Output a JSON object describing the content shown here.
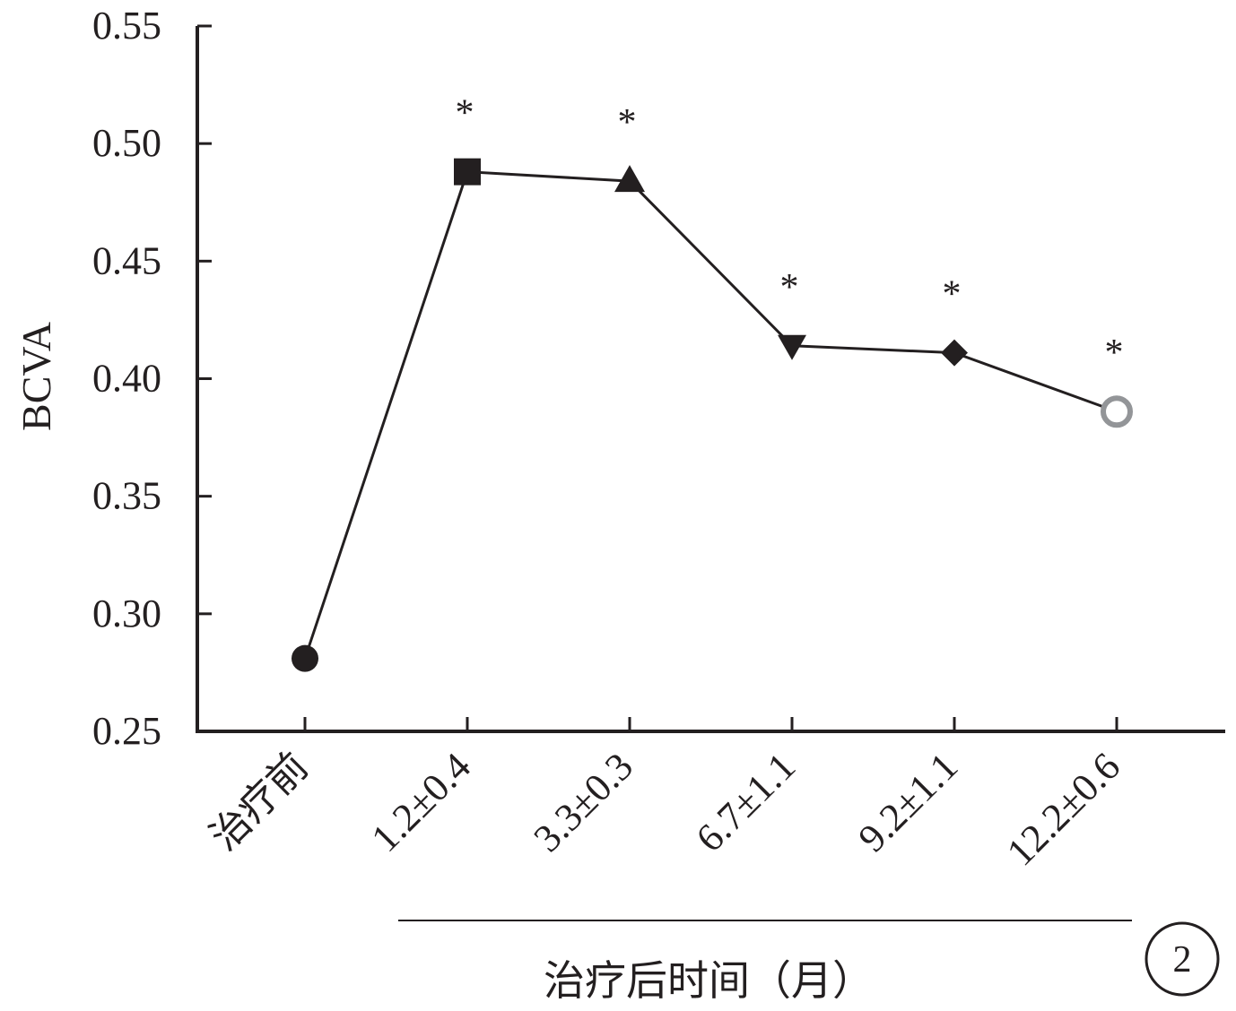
{
  "chart_data": {
    "type": "line",
    "title": "",
    "ylabel": "BCVA",
    "xlabel": "治疗后时间（月）",
    "ylim": [
      0.25,
      0.55
    ],
    "yticks": [
      "0.25",
      "0.30",
      "0.35",
      "0.40",
      "0.45",
      "0.50",
      "0.55"
    ],
    "categories": [
      "治疗前",
      "1.2±0.4",
      "3.3±0.3",
      "6.7±1.1",
      "9.2±1.1",
      "12.2±0.6"
    ],
    "values": [
      0.281,
      0.488,
      0.484,
      0.414,
      0.411,
      0.386
    ],
    "markers": [
      "circle",
      "square",
      "triangle-up",
      "triangle-down",
      "diamond",
      "ring"
    ],
    "marker_colors": [
      "#231f20",
      "#231f20",
      "#231f20",
      "#231f20",
      "#231f20",
      "#939598"
    ],
    "significance": [
      "",
      "*",
      "*",
      "*",
      "*",
      "*"
    ],
    "line_color": "#231f20",
    "grid": false,
    "legend": "none",
    "panel_label": "2"
  }
}
